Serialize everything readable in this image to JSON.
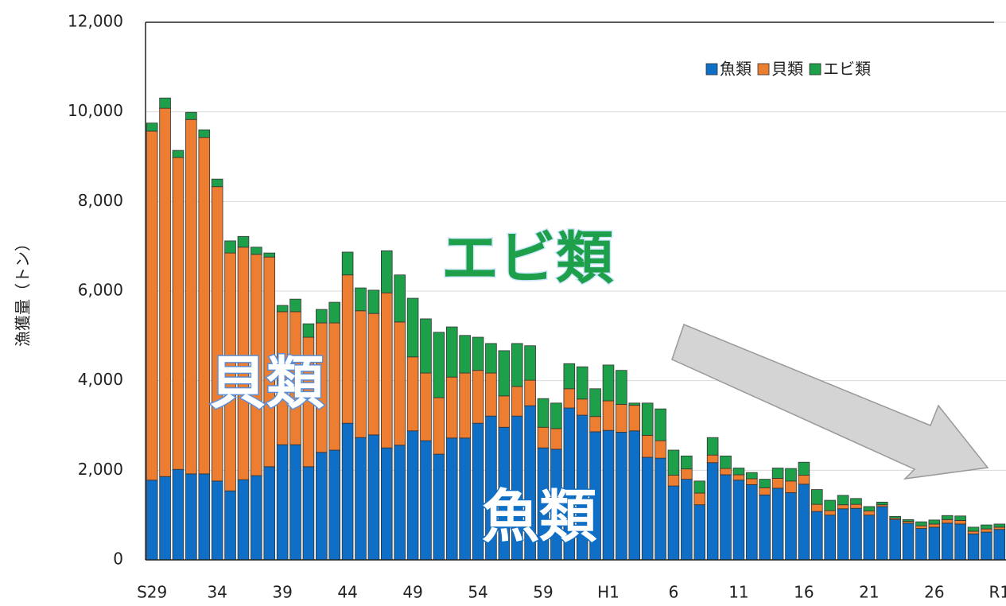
{
  "chart_data": {
    "type": "stacked_bar",
    "y_label": "漁獲量（トン）",
    "categories": [
      "S29",
      null,
      null,
      null,
      null,
      "34",
      null,
      null,
      null,
      null,
      "39",
      null,
      null,
      null,
      null,
      "44",
      null,
      null,
      null,
      null,
      "49",
      null,
      null,
      null,
      null,
      "54",
      null,
      null,
      null,
      null,
      "59",
      null,
      null,
      null,
      null,
      "H1",
      null,
      null,
      null,
      null,
      "6",
      null,
      null,
      null,
      null,
      "11",
      null,
      null,
      null,
      null,
      "16",
      null,
      null,
      null,
      null,
      "21",
      null,
      null,
      null,
      null,
      "26",
      null,
      null,
      null,
      null,
      "R1"
    ],
    "series": [
      {
        "name": "魚類",
        "color": "#0f6fc6",
        "values": [
          1780,
          1860,
          2020,
          1920,
          1920,
          1760,
          1540,
          1790,
          1880,
          2080,
          2570,
          2570,
          2080,
          2400,
          2450,
          3050,
          2730,
          2790,
          2500,
          2560,
          2880,
          2660,
          2360,
          2720,
          2720,
          3050,
          3210,
          2960,
          3210,
          3440,
          2500,
          2470,
          3390,
          3230,
          2860,
          2890,
          2850,
          2880,
          2290,
          2270,
          1650,
          1800,
          1230,
          2170,
          1900,
          1780,
          1680,
          1450,
          1600,
          1500,
          1690,
          1080,
          1000,
          1140,
          1150,
          1000,
          1190,
          900,
          820,
          700,
          730,
          820,
          800,
          580,
          620,
          680
        ]
      },
      {
        "name": "貝類",
        "color": "#ed7d31",
        "values": [
          7790,
          8220,
          6960,
          7910,
          7510,
          6570,
          5310,
          5190,
          4940,
          4680,
          2970,
          2970,
          2890,
          2890,
          2840,
          3310,
          2830,
          2710,
          3460,
          2750,
          1650,
          1510,
          1260,
          1360,
          1450,
          1180,
          960,
          700,
          660,
          570,
          460,
          460,
          430,
          360,
          340,
          660,
          620,
          570,
          490,
          390,
          240,
          230,
          260,
          170,
          140,
          120,
          130,
          160,
          220,
          260,
          200,
          160,
          100,
          90,
          90,
          90,
          40,
          30,
          40,
          60,
          70,
          80,
          80,
          60,
          70,
          50
        ]
      },
      {
        "name": "エビ類",
        "color": "#1ea04a",
        "values": [
          180,
          230,
          160,
          160,
          170,
          170,
          270,
          240,
          160,
          90,
          140,
          280,
          300,
          300,
          460,
          510,
          510,
          520,
          940,
          1050,
          1310,
          1210,
          1460,
          1120,
          840,
          740,
          660,
          1010,
          960,
          770,
          640,
          570,
          560,
          720,
          620,
          800,
          760,
          50,
          720,
          710,
          560,
          290,
          270,
          390,
          280,
          150,
          140,
          190,
          230,
          280,
          290,
          330,
          230,
          210,
          130,
          100,
          60,
          40,
          40,
          90,
          90,
          90,
          100,
          90,
          90,
          70
        ]
      }
    ],
    "annotations": [
      "エビ類",
      "貝類",
      "魚類"
    ],
    "ylim": [
      0,
      12000
    ],
    "yticks": [
      0,
      {
        "value": 2000,
        "label": "2,000"
      },
      {
        "value": 4000,
        "label": "4,000"
      },
      {
        "value": 6000,
        "label": "6,000"
      },
      {
        "value": 8000,
        "label": "8,000"
      },
      {
        "value": 10000,
        "label": "10,000"
      },
      {
        "value": 12000,
        "label": "12,000"
      }
    ],
    "grid": true,
    "legend": "upper right"
  }
}
